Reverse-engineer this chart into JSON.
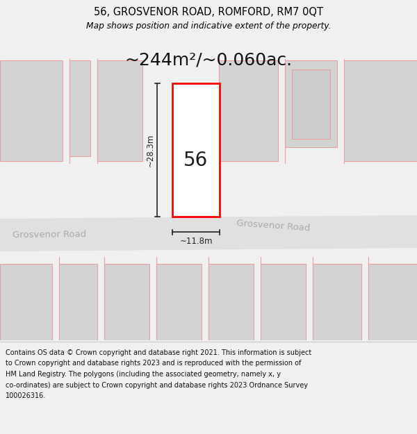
{
  "title": "56, GROSVENOR ROAD, ROMFORD, RM7 0QT",
  "subtitle": "Map shows position and indicative extent of the property.",
  "area_text": "~244m²/~0.060ac.",
  "house_number": "56",
  "width_label": "~11.8m",
  "height_label": "~28.3m",
  "road_label_left": "Grosvenor Road",
  "road_label_right": "Grosvenor Road",
  "footer_lines": [
    "Contains OS data © Crown copyright and database right 2021. This information is subject",
    "to Crown copyright and database rights 2023 and is reproduced with the permission of",
    "HM Land Registry. The polygons (including the associated geometry, namely x, y",
    "co-ordinates) are subject to Crown copyright and database rights 2023 Ordnance Survey",
    "100026316."
  ],
  "bg_color": "#f0f0f0",
  "map_bg": "#ffffff",
  "road_fill": "#e0e0e0",
  "block_fill": "#d3d3d3",
  "block_edge": "#e8a0a0",
  "block_edge2": "#cccccc",
  "plot_edge": "#ff0000",
  "dim_color": "#222222",
  "road_text_color": "#aaaaaa",
  "title_color": "#000000",
  "footer_color": "#111111",
  "separator_color": "#bbbbbb"
}
